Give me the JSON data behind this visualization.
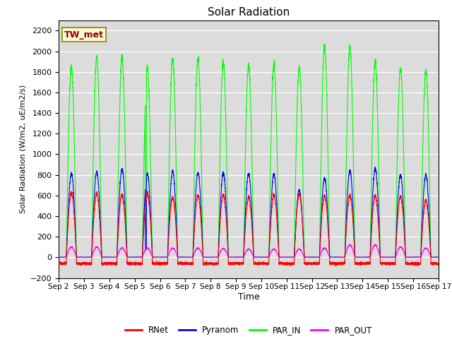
{
  "title": "Solar Radiation",
  "ylabel": "Solar Radiation (W/m2, uE/m2/s)",
  "xlabel": "Time",
  "ylim": [
    -200,
    2300
  ],
  "yticks": [
    -200,
    0,
    200,
    400,
    600,
    800,
    1000,
    1200,
    1400,
    1600,
    1800,
    2000,
    2200
  ],
  "x_tick_labels": [
    "Sep 2",
    "Sep 3",
    "Sep 4",
    "Sep 5",
    "Sep 6",
    "Sep 7",
    "Sep 8",
    "Sep 9",
    "Sep 10",
    "Sep 11",
    "Sep 12",
    "Sep 13",
    "Sep 14",
    "Sep 15",
    "Sep 16",
    "Sep 17"
  ],
  "annotation_text": "TW_met",
  "annotation_color": "#8B0000",
  "annotation_bg": "#FFFACD",
  "annotation_border": "#8B8000",
  "colors": {
    "RNet": "#FF0000",
    "Pyranom": "#0000FF",
    "PAR_IN": "#00FF00",
    "PAR_OUT": "#FF00FF"
  },
  "background_color": "#DCDCDC",
  "line_width": 0.8
}
